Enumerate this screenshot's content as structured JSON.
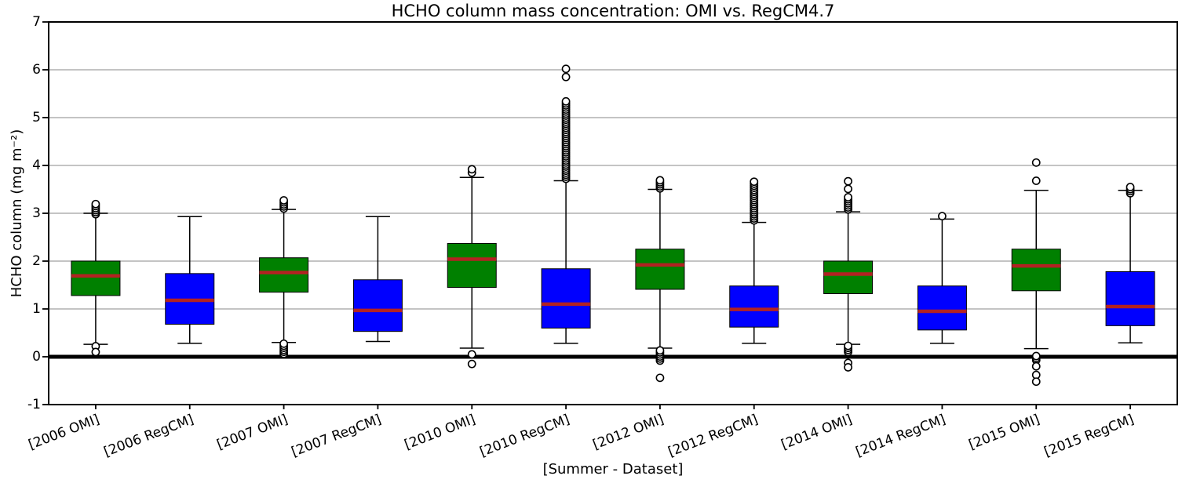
{
  "chart_data": {
    "type": "boxplot",
    "title": "HCHO column mass concentration: OMI vs. RegCM4.7",
    "xlabel": "[Summer - Dataset]",
    "ylabel": "HCHO column (mg m⁻²)",
    "ylim": [
      -1,
      7
    ],
    "yticks": [
      -1,
      0,
      1,
      2,
      3,
      4,
      5,
      6,
      7
    ],
    "grid": true,
    "zero_line_y": 0,
    "legend": "none",
    "colors": {
      "omi_box": "#008000",
      "regcm_box": "#0000ff",
      "median": "#b22222",
      "grid": "#b0b0b0",
      "outline": "#000000",
      "background": "#ffffff"
    },
    "categories": [
      "[2006 OMI]",
      "[2006 RegCM]",
      "[2007 OMI]",
      "[2007 RegCM]",
      "[2010 OMI]",
      "[2010 RegCM]",
      "[2012 OMI]",
      "[2012 RegCM]",
      "[2014 OMI]",
      "[2014 RegCM]",
      "[2015 OMI]",
      "[2015 RegCM]"
    ],
    "boxes": [
      {
        "label": "[2006 OMI]",
        "series": "OMI",
        "color": "omi_box",
        "whislo": 0.26,
        "q1": 1.28,
        "med": 1.69,
        "q3": 2.0,
        "whishi": 3.0,
        "fliers": [
          0.22,
          0.1
        ],
        "flier_bands": [
          [
            2.98,
            3.22
          ]
        ]
      },
      {
        "label": "[2006 RegCM]",
        "series": "RegCM",
        "color": "regcm_box",
        "whislo": 0.28,
        "q1": 0.68,
        "med": 1.18,
        "q3": 1.74,
        "whishi": 2.93,
        "fliers": [],
        "flier_bands": []
      },
      {
        "label": "[2007 OMI]",
        "series": "OMI",
        "color": "omi_box",
        "whislo": 0.3,
        "q1": 1.35,
        "med": 1.76,
        "q3": 2.07,
        "whishi": 3.08,
        "fliers": [],
        "flier_bands": [
          [
            3.1,
            3.28
          ],
          [
            0.06,
            0.28
          ]
        ]
      },
      {
        "label": "[2007 RegCM]",
        "series": "RegCM",
        "color": "regcm_box",
        "whislo": 0.32,
        "q1": 0.53,
        "med": 0.97,
        "q3": 1.61,
        "whishi": 2.93,
        "fliers": [],
        "flier_bands": []
      },
      {
        "label": "[2010 OMI]",
        "series": "OMI",
        "color": "omi_box",
        "whislo": 0.18,
        "q1": 1.45,
        "med": 2.04,
        "q3": 2.37,
        "whishi": 3.75,
        "fliers": [
          3.85,
          3.92,
          0.05,
          -0.15
        ],
        "flier_bands": []
      },
      {
        "label": "[2010 RegCM]",
        "series": "RegCM",
        "color": "regcm_box",
        "whislo": 0.28,
        "q1": 0.6,
        "med": 1.1,
        "q3": 1.84,
        "whishi": 3.68,
        "fliers": [
          5.85,
          6.02
        ],
        "flier_bands": [
          [
            3.72,
            5.35
          ]
        ]
      },
      {
        "label": "[2012 OMI]",
        "series": "OMI",
        "color": "omi_box",
        "whislo": 0.18,
        "q1": 1.41,
        "med": 1.92,
        "q3": 2.25,
        "whishi": 3.5,
        "fliers": [
          -0.44
        ],
        "flier_bands": [
          [
            3.52,
            3.7
          ],
          [
            -0.08,
            0.16
          ]
        ]
      },
      {
        "label": "[2012 RegCM]",
        "series": "RegCM",
        "color": "regcm_box",
        "whislo": 0.28,
        "q1": 0.62,
        "med": 0.99,
        "q3": 1.48,
        "whishi": 2.81,
        "fliers": [],
        "flier_bands": [
          [
            2.85,
            3.68
          ]
        ]
      },
      {
        "label": "[2014 OMI]",
        "series": "OMI",
        "color": "omi_box",
        "whislo": 0.26,
        "q1": 1.32,
        "med": 1.73,
        "q3": 2.0,
        "whishi": 3.03,
        "fliers": [
          3.51,
          3.67,
          -0.13,
          -0.22
        ],
        "flier_bands": [
          [
            3.08,
            3.36
          ],
          [
            0.1,
            0.27
          ]
        ]
      },
      {
        "label": "[2014 RegCM]",
        "series": "RegCM",
        "color": "regcm_box",
        "whislo": 0.28,
        "q1": 0.56,
        "med": 0.95,
        "q3": 1.48,
        "whishi": 2.88,
        "fliers": [
          2.94
        ],
        "flier_bands": []
      },
      {
        "label": "[2015 OMI]",
        "series": "OMI",
        "color": "omi_box",
        "whislo": 0.17,
        "q1": 1.38,
        "med": 1.9,
        "q3": 2.25,
        "whishi": 3.48,
        "fliers": [
          3.68,
          4.06,
          -0.2,
          -0.38,
          -0.52
        ],
        "flier_bands": [
          [
            -0.07,
            0.04
          ]
        ]
      },
      {
        "label": "[2015 RegCM]",
        "series": "RegCM",
        "color": "regcm_box",
        "whislo": 0.29,
        "q1": 0.65,
        "med": 1.05,
        "q3": 1.78,
        "whishi": 3.48,
        "fliers": [],
        "flier_bands": [
          [
            3.42,
            3.58
          ]
        ]
      }
    ]
  }
}
